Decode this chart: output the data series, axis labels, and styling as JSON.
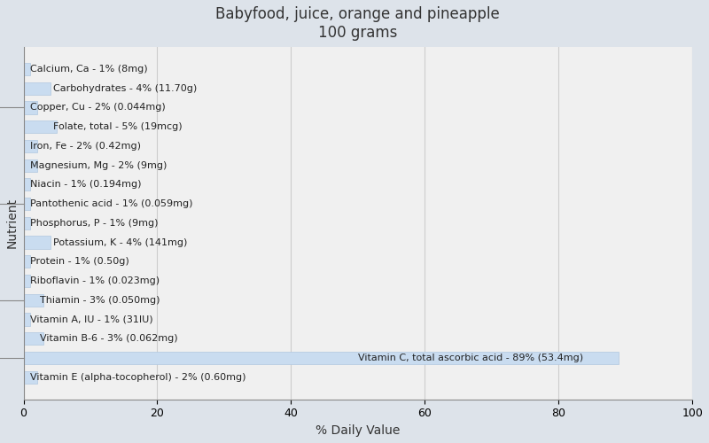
{
  "title": "Babyfood, juice, orange and pineapple\n100 grams",
  "xlabel": "% Daily Value",
  "ylabel": "Nutrient",
  "xlim": [
    0,
    100
  ],
  "xticks": [
    0,
    20,
    40,
    60,
    80,
    100
  ],
  "background_color": "#dde3ea",
  "plot_background_color": "#f0f0f0",
  "bar_color": "#c9dcf0",
  "bar_edge_color": "#b0c8e0",
  "nutrients": [
    "Calcium, Ca - 1% (8mg)",
    "Carbohydrates - 4% (11.70g)",
    "Copper, Cu - 2% (0.044mg)",
    "Folate, total - 5% (19mcg)",
    "Iron, Fe - 2% (0.42mg)",
    "Magnesium, Mg - 2% (9mg)",
    "Niacin - 1% (0.194mg)",
    "Pantothenic acid - 1% (0.059mg)",
    "Phosphorus, P - 1% (9mg)",
    "Potassium, K - 4% (141mg)",
    "Protein - 1% (0.50g)",
    "Riboflavin - 1% (0.023mg)",
    "Thiamin - 3% (0.050mg)",
    "Vitamin A, IU - 1% (31IU)",
    "Vitamin B-6 - 3% (0.062mg)",
    "Vitamin C, total ascorbic acid - 89% (53.4mg)",
    "Vitamin E (alpha-tocopherol) - 2% (0.60mg)"
  ],
  "values": [
    1,
    4,
    2,
    5,
    2,
    2,
    1,
    1,
    1,
    4,
    1,
    1,
    3,
    1,
    3,
    89,
    2
  ],
  "label_x_offset": [
    1.0,
    4.5,
    1.0,
    4.5,
    1.0,
    1.0,
    1.0,
    1.0,
    1.0,
    4.5,
    1.0,
    1.0,
    2.5,
    1.0,
    2.5,
    50.0,
    1.0
  ],
  "title_fontsize": 12,
  "axis_label_fontsize": 10,
  "tick_fontsize": 9,
  "bar_label_fontsize": 8,
  "title_color": "#333333",
  "label_color": "#222222",
  "grid_color": "#cccccc"
}
